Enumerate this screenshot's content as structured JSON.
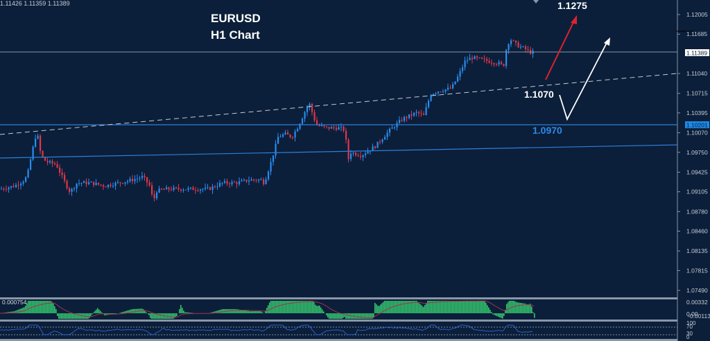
{
  "header": {
    "ohlc_text": "1.11426 1.11359 1.11389",
    "title_line1": "EURUSD",
    "title_line2": "H1 Chart"
  },
  "colors": {
    "background": "#0b1f3a",
    "bull": "#2a8cf0",
    "bear": "#e0364a",
    "axis": "#8a96a8",
    "support_line": "#2f7fd6",
    "trendline": "#c8cdd6",
    "macd_hist": "#35c46e",
    "macd_signal": "#a3324e",
    "rsi_line": "#2d5fc8",
    "price_tag_bg": "#ffffff",
    "support_tag_bg": "#1e88e5"
  },
  "annotations": {
    "target_label": "1.1275",
    "pivot_label": "1.1070",
    "support_label": "1.0970"
  },
  "price_axis": {
    "labels": [
      "1.12005",
      "1.11685",
      "1.11040",
      "1.10715",
      "1.10395",
      "1.10070",
      "1.09750",
      "1.09425",
      "1.09105",
      "1.08780",
      "1.08460",
      "1.08135",
      "1.07815",
      "1.07490"
    ],
    "current_price_tag": "1.11389",
    "support_price_tag": "1.10201"
  },
  "macd_axis": {
    "labels": [
      "0.00332",
      "0.00",
      "-0.001135"
    ],
    "value_text": "0.000754"
  },
  "rsi_axis": {
    "labels": [
      "100",
      "70",
      "30",
      "0"
    ]
  },
  "chart_data": {
    "type": "candlestick",
    "title": "EURUSD H1 Chart",
    "symbol": "EURUSD",
    "timeframe": "H1",
    "ylim": [
      1.0735,
      1.1225
    ],
    "current_price": 1.11389,
    "last_ohlc": {
      "high": 1.11426,
      "low": 1.11359,
      "close": 1.11389
    },
    "horizontal_lines": [
      {
        "price": 1.11389,
        "label": "current price"
      },
      {
        "price": 1.10201,
        "label": "support"
      }
    ],
    "trendlines": [
      {
        "style": "dashed",
        "from": [
          0,
          1.1013
        ],
        "to": [
          960,
          1.1104
        ]
      },
      {
        "style": "solid",
        "from": [
          0,
          1.096
        ],
        "to": [
          960,
          1.098
        ]
      }
    ],
    "annotations": [
      {
        "text": "1.1275",
        "note": "upside target (red arrow)"
      },
      {
        "text": "1.1070",
        "note": "pullback level (white V arrow)"
      },
      {
        "text": "1.0970",
        "note": "support level"
      }
    ],
    "price_path_x": [
      0,
      20,
      35,
      40,
      45,
      52,
      58,
      65,
      80,
      95,
      100,
      110,
      130,
      150,
      170,
      190,
      205,
      215,
      220,
      225,
      240,
      260,
      280,
      300,
      320,
      340,
      360,
      375,
      380,
      390,
      400,
      410,
      420,
      430,
      440,
      445,
      455,
      470,
      490,
      497,
      500,
      505,
      520,
      540,
      560,
      580,
      600,
      610,
      620,
      630,
      650,
      660,
      670,
      680,
      700,
      720,
      725,
      730,
      735,
      745,
      755,
      765,
      770
    ],
    "price_path_y": [
      1.0915,
      1.092,
      1.093,
      1.0945,
      1.0975,
      1.101,
      1.097,
      1.096,
      1.0955,
      1.092,
      1.091,
      1.0925,
      1.0925,
      1.092,
      1.0925,
      1.093,
      1.0935,
      1.092,
      1.0895,
      1.0912,
      1.0915,
      1.0915,
      1.0915,
      1.0915,
      1.0925,
      1.0925,
      1.093,
      1.093,
      1.0925,
      1.096,
      1.1,
      1.1005,
      1.1,
      1.102,
      1.1045,
      1.1055,
      1.102,
      1.1015,
      1.1015,
      1.101,
      1.096,
      1.0975,
      1.097,
      1.0985,
      1.101,
      1.103,
      1.104,
      1.1035,
      1.107,
      1.1075,
      1.108,
      1.11,
      1.1125,
      1.113,
      1.1125,
      1.112,
      1.1115,
      1.115,
      1.116,
      1.115,
      1.1145,
      1.1138,
      1.11389
    ],
    "macd": {
      "hist_scale_max": 0.00332,
      "hist_min": -0.001135,
      "current": 0.000754
    },
    "rsi": {
      "levels": [
        70,
        30
      ],
      "range": [
        0,
        100
      ]
    }
  }
}
